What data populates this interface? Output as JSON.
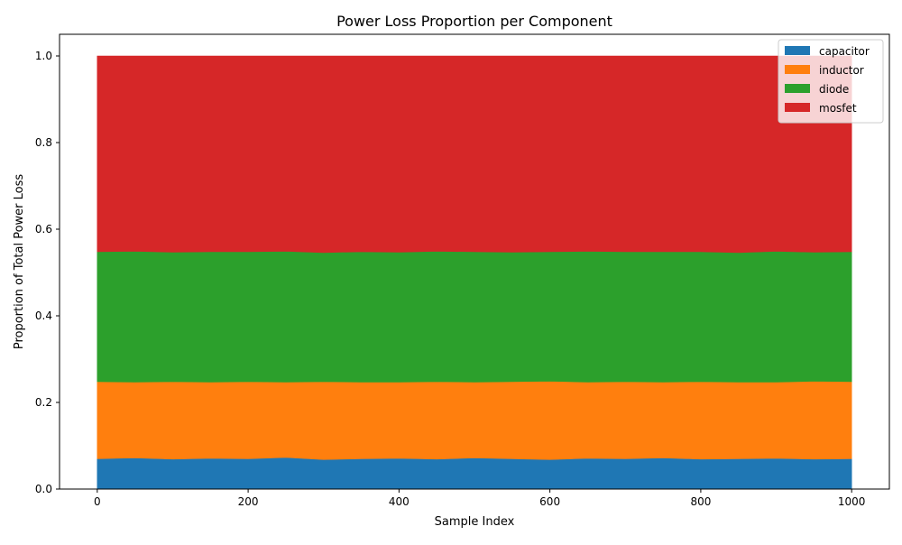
{
  "chart_data": {
    "type": "area",
    "stacked": true,
    "title": "Power Loss Proportion per Component",
    "xlabel": "Sample Index",
    "ylabel": "Proportion of Total Power Loss",
    "xlim": [
      -50,
      1050
    ],
    "ylim": [
      0,
      1.05
    ],
    "xticks": [
      {
        "value": 0,
        "label": "0"
      },
      {
        "value": 200,
        "label": "200"
      },
      {
        "value": 400,
        "label": "400"
      },
      {
        "value": 600,
        "label": "600"
      },
      {
        "value": 800,
        "label": "800"
      },
      {
        "value": 1000,
        "label": "1000"
      }
    ],
    "yticks": [
      {
        "value": 0.0,
        "label": "0.0"
      },
      {
        "value": 0.2,
        "label": "0.2"
      },
      {
        "value": 0.4,
        "label": "0.4"
      },
      {
        "value": 0.6,
        "label": "0.6"
      },
      {
        "value": 0.8,
        "label": "0.8"
      },
      {
        "value": 1.0,
        "label": "1.0"
      }
    ],
    "grid": false,
    "legend_position": "top-right",
    "x": [
      0,
      50,
      100,
      150,
      200,
      250,
      300,
      350,
      400,
      450,
      500,
      550,
      600,
      650,
      700,
      750,
      800,
      850,
      900,
      950,
      1000
    ],
    "series": [
      {
        "name": "capacitor",
        "color": "#1f77b4",
        "values": [
          0.07,
          0.072,
          0.069,
          0.071,
          0.07,
          0.073,
          0.068,
          0.07,
          0.071,
          0.069,
          0.072,
          0.07,
          0.068,
          0.071,
          0.07,
          0.072,
          0.069,
          0.07,
          0.071,
          0.069,
          0.07
        ]
      },
      {
        "name": "inductor",
        "color": "#ff7f0e",
        "values": [
          0.178,
          0.175,
          0.179,
          0.176,
          0.178,
          0.174,
          0.18,
          0.177,
          0.176,
          0.179,
          0.175,
          0.178,
          0.181,
          0.176,
          0.178,
          0.175,
          0.179,
          0.177,
          0.176,
          0.18,
          0.178
        ]
      },
      {
        "name": "diode",
        "color": "#2ca02c",
        "values": [
          0.3,
          0.302,
          0.299,
          0.301,
          0.3,
          0.302,
          0.298,
          0.301,
          0.3,
          0.301,
          0.301,
          0.299,
          0.299,
          0.302,
          0.3,
          0.301,
          0.3,
          0.299,
          0.302,
          0.298,
          0.3
        ]
      },
      {
        "name": "mosfet",
        "color": "#d62728",
        "values": [
          0.452,
          0.451,
          0.453,
          0.452,
          0.452,
          0.451,
          0.454,
          0.452,
          0.453,
          0.451,
          0.452,
          0.453,
          0.452,
          0.451,
          0.452,
          0.452,
          0.452,
          0.454,
          0.451,
          0.453,
          0.452
        ]
      }
    ]
  }
}
